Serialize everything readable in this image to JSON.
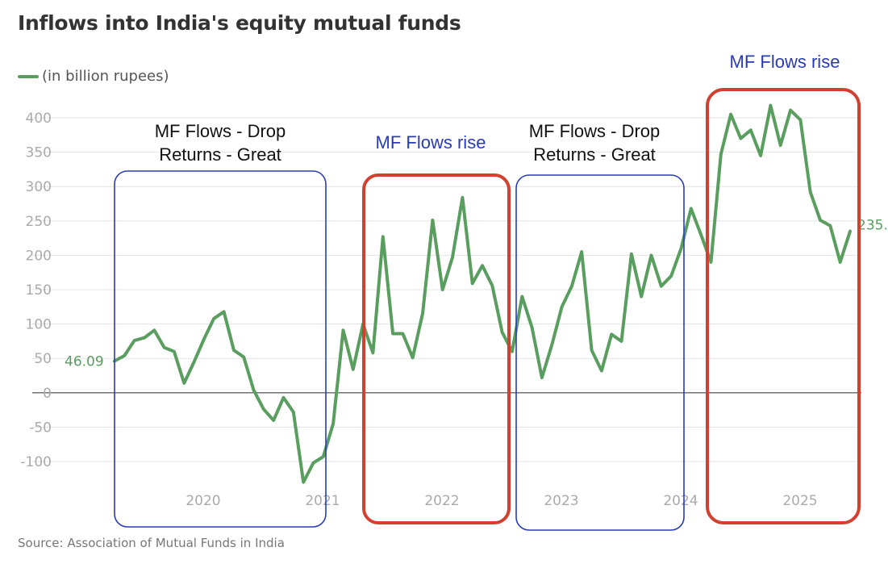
{
  "title": "Inflows into India's equity mutual funds",
  "legend_label": "(in billion rupees)",
  "source": "Source: Association of Mutual Funds in India",
  "colors": {
    "series": "#5a9e5f",
    "blue_box": "#2a3cb5",
    "red_box": "#d2412f",
    "grid": "#e3e3e3",
    "zero": "#444444",
    "tick": "#aaaaaa",
    "annotation_dark": "#111111",
    "annotation_blue": "#2a3cb5"
  },
  "chart_data": {
    "type": "line",
    "x_ticks": [
      "2020",
      "2021",
      "2022",
      "2023",
      "2024",
      "2025"
    ],
    "y_ticks": [
      400,
      350,
      300,
      250,
      200,
      150,
      100,
      50,
      0,
      -50,
      -100
    ],
    "ylim": [
      -100,
      400
    ],
    "series": [
      {
        "values": [
          46.09,
          54,
          76,
          80,
          91,
          66,
          60,
          14,
          45,
          78,
          108,
          118,
          62,
          52,
          4,
          -24,
          -40,
          -7,
          -28,
          -130,
          -102,
          -93,
          -45,
          91,
          34,
          100,
          58,
          227,
          86,
          86,
          51,
          116,
          251,
          150,
          197,
          284,
          159,
          185,
          156,
          88,
          60,
          140,
          95,
          22,
          70,
          125,
          155,
          205,
          62,
          32,
          85,
          75,
          202,
          140,
          200,
          155,
          170,
          210,
          268,
          230,
          190,
          347,
          405,
          370,
          382,
          345,
          418,
          360,
          411,
          397,
          292,
          251,
          243,
          190,
          235
        ]
      }
    ],
    "data_labels": {
      "first": "46.09",
      "last": "235."
    }
  },
  "annotations": [
    {
      "lines": [
        "MF Flows - Drop",
        "Returns - Great"
      ],
      "style": "dark"
    },
    {
      "lines": [
        "MF Flows rise"
      ],
      "style": "blue"
    },
    {
      "lines": [
        "MF Flows - Drop",
        "Returns - Great"
      ],
      "style": "dark"
    },
    {
      "lines": [
        "MF Flows rise"
      ],
      "style": "blue"
    }
  ],
  "boxes": [
    {
      "color": "blue"
    },
    {
      "color": "red"
    },
    {
      "color": "blue"
    },
    {
      "color": "red"
    }
  ]
}
